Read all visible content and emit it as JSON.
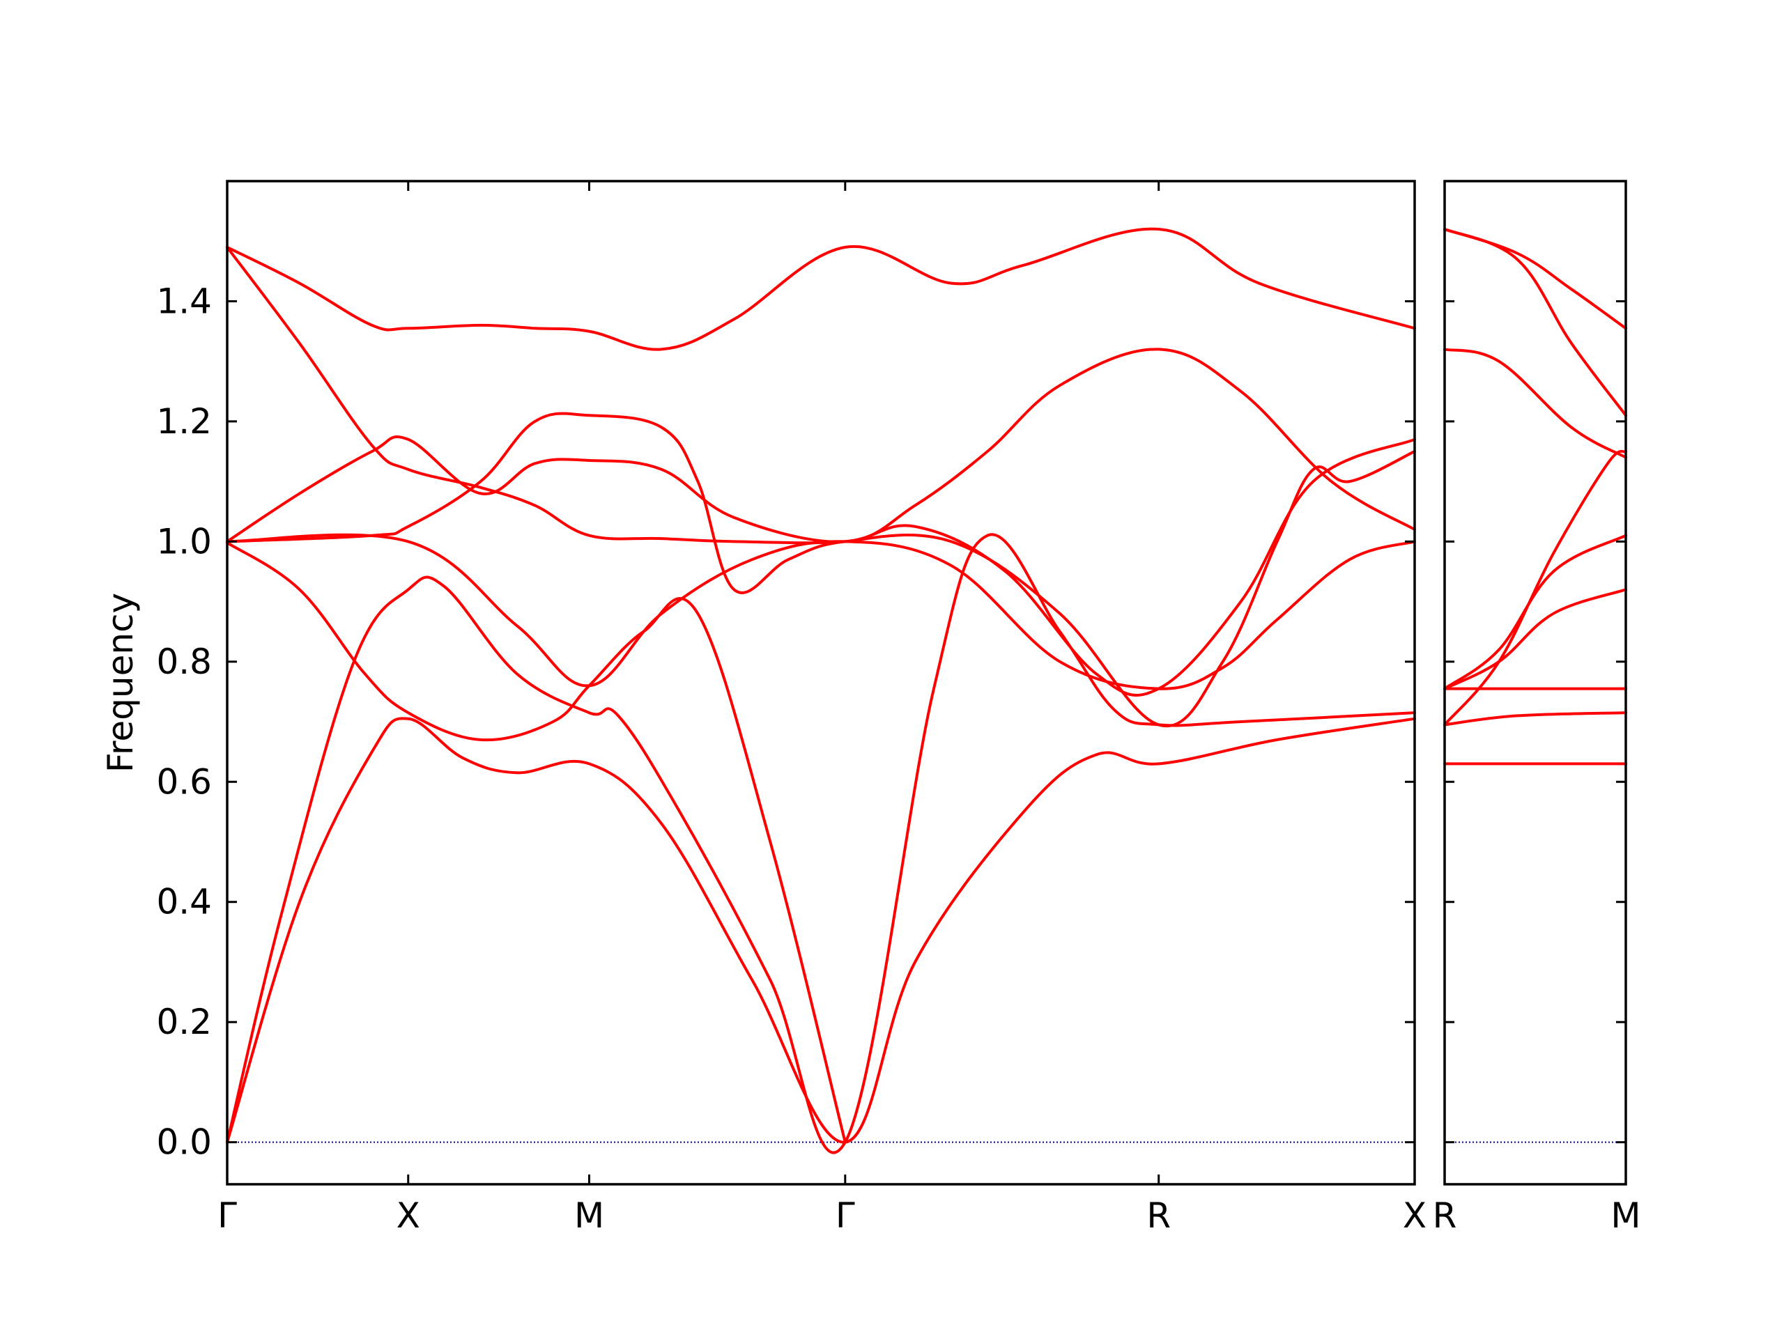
{
  "chart_data": {
    "type": "line",
    "ylabel": "Frequency",
    "ylim": [
      -0.07,
      1.6
    ],
    "yticks": [
      0.0,
      0.2,
      0.4,
      0.6,
      0.8,
      1.0,
      1.2,
      1.4
    ],
    "ytick_labels": [
      "0.0",
      "0.2",
      "0.4",
      "0.6",
      "0.8",
      "1.0",
      "1.2",
      "1.4"
    ],
    "grid": false,
    "legend": "none",
    "colors": {
      "bands": "#ff0000",
      "zero_line": "#00008b",
      "frame": "#000000"
    },
    "panels": [
      {
        "name": "main",
        "kpoints": [
          {
            "label": "Γ",
            "x": 0.0
          },
          {
            "label": "X",
            "x": 0.5
          },
          {
            "label": "M",
            "x": 1.0
          },
          {
            "label": "Γ",
            "x": 1.707
          },
          {
            "label": "R",
            "x": 2.573
          },
          {
            "label": "X",
            "x": 3.28
          }
        ],
        "xlim": [
          0.0,
          3.28
        ],
        "bands": [
          [
            [
              0.0,
              0.0
            ],
            [
              0.2,
              0.4
            ],
            [
              0.4,
              0.65
            ],
            [
              0.5,
              0.705
            ],
            [
              0.65,
              0.64
            ],
            [
              0.8,
              0.615
            ],
            [
              1.0,
              0.63
            ],
            [
              1.2,
              0.53
            ],
            [
              1.45,
              0.27
            ],
            [
              1.707,
              0.0
            ],
            [
              1.9,
              0.3
            ],
            [
              2.2,
              0.55
            ],
            [
              2.4,
              0.645
            ],
            [
              2.573,
              0.63
            ],
            [
              2.9,
              0.67
            ],
            [
              3.28,
              0.705
            ]
          ],
          [
            [
              0.0,
              0.0
            ],
            [
              0.15,
              0.38
            ],
            [
              0.35,
              0.8
            ],
            [
              0.5,
              0.92
            ],
            [
              0.6,
              0.925
            ],
            [
              0.8,
              0.78
            ],
            [
              1.0,
              0.715
            ],
            [
              1.08,
              0.71
            ],
            [
              1.25,
              0.55
            ],
            [
              1.5,
              0.27
            ],
            [
              1.707,
              0.0
            ],
            [
              1.95,
              0.75
            ],
            [
              2.1,
              1.01
            ],
            [
              2.3,
              0.85
            ],
            [
              2.45,
              0.72
            ],
            [
              2.573,
              0.695
            ],
            [
              2.8,
              0.7
            ],
            [
              3.28,
              0.715
            ]
          ],
          [
            [
              0.0,
              0.998
            ],
            [
              0.2,
              0.92
            ],
            [
              0.38,
              0.78
            ],
            [
              0.5,
              0.715
            ],
            [
              0.7,
              0.67
            ],
            [
              0.9,
              0.7
            ],
            [
              1.0,
              0.76
            ],
            [
              1.15,
              0.85
            ],
            [
              1.3,
              0.88
            ],
            [
              1.5,
              0.5
            ],
            [
              1.707,
              0.0
            ]
          ],
          [
            [
              0.0,
              1.0
            ],
            [
              0.5,
              1.0
            ],
            [
              0.8,
              0.86
            ],
            [
              1.0,
              0.76
            ],
            [
              1.2,
              0.88
            ],
            [
              1.45,
              0.97
            ],
            [
              1.707,
              1.0
            ],
            [
              2.0,
              0.96
            ],
            [
              2.3,
              0.8
            ],
            [
              2.573,
              0.755
            ],
            [
              2.75,
              0.79
            ],
            [
              2.9,
              0.87
            ],
            [
              3.1,
              0.97
            ],
            [
              3.28,
              1.0
            ]
          ],
          [
            [
              0.0,
              1.0
            ],
            [
              0.4,
              1.01
            ],
            [
              0.5,
              1.025
            ],
            [
              0.7,
              1.1
            ],
            [
              0.85,
              1.2
            ],
            [
              1.0,
              1.21
            ],
            [
              1.2,
              1.19
            ],
            [
              1.3,
              1.1
            ],
            [
              1.4,
              0.92
            ],
            [
              1.55,
              0.97
            ],
            [
              1.707,
              1.0
            ],
            [
              2.0,
              1.0
            ],
            [
              2.3,
              0.88
            ],
            [
              2.573,
              0.695
            ],
            [
              2.75,
              0.8
            ],
            [
              2.9,
              1.0
            ],
            [
              3.0,
              1.12
            ],
            [
              3.1,
              1.1
            ],
            [
              3.28,
              1.15
            ]
          ],
          [
            [
              0.0,
              1.0
            ],
            [
              0.2,
              1.08
            ],
            [
              0.4,
              1.15
            ],
            [
              0.5,
              1.17
            ],
            [
              0.7,
              1.08
            ],
            [
              0.85,
              1.13
            ],
            [
              1.0,
              1.135
            ],
            [
              1.2,
              1.12
            ],
            [
              1.4,
              1.04
            ],
            [
              1.707,
              1.0
            ],
            [
              1.9,
              1.06
            ],
            [
              2.1,
              1.15
            ],
            [
              2.3,
              1.26
            ],
            [
              2.573,
              1.32
            ],
            [
              2.8,
              1.25
            ],
            [
              3.05,
              1.1
            ],
            [
              3.28,
              1.02
            ]
          ],
          [
            [
              0.0,
              1.49
            ],
            [
              0.2,
              1.33
            ],
            [
              0.4,
              1.16
            ],
            [
              0.5,
              1.12
            ],
            [
              0.7,
              1.09
            ],
            [
              0.85,
              1.06
            ],
            [
              1.0,
              1.01
            ],
            [
              1.2,
              1.005
            ],
            [
              1.4,
              1.0
            ],
            [
              1.707,
              1.0
            ],
            [
              1.9,
              1.025
            ],
            [
              2.15,
              0.95
            ],
            [
              2.4,
              0.78
            ],
            [
              2.573,
              0.755
            ],
            [
              2.8,
              0.9
            ],
            [
              3.0,
              1.1
            ],
            [
              3.28,
              1.17
            ]
          ],
          [
            [
              0.0,
              1.49
            ],
            [
              0.2,
              1.43
            ],
            [
              0.4,
              1.36
            ],
            [
              0.5,
              1.355
            ],
            [
              0.7,
              1.36
            ],
            [
              0.85,
              1.355
            ],
            [
              1.0,
              1.35
            ],
            [
              1.2,
              1.32
            ],
            [
              1.4,
              1.37
            ],
            [
              1.707,
              1.49
            ],
            [
              2.0,
              1.43
            ],
            [
              2.2,
              1.46
            ],
            [
              2.573,
              1.52
            ],
            [
              2.85,
              1.43
            ],
            [
              3.28,
              1.355
            ]
          ]
        ]
      },
      {
        "name": "right",
        "kpoints": [
          {
            "label": "R",
            "x": 0.0
          },
          {
            "label": "M",
            "x": 0.5
          }
        ],
        "xlim": [
          0.0,
          0.5
        ],
        "bands": [
          [
            [
              0.0,
              0.63
            ],
            [
              0.5,
              0.63
            ]
          ],
          [
            [
              0.0,
              0.695
            ],
            [
              0.2,
              0.71
            ],
            [
              0.5,
              0.715
            ]
          ],
          [
            [
              0.0,
              0.695
            ],
            [
              0.15,
              0.8
            ],
            [
              0.3,
              0.98
            ],
            [
              0.45,
              1.13
            ],
            [
              0.5,
              1.15
            ]
          ],
          [
            [
              0.0,
              0.755
            ],
            [
              0.5,
              0.755
            ]
          ],
          [
            [
              0.0,
              0.755
            ],
            [
              0.15,
              0.8
            ],
            [
              0.3,
              0.88
            ],
            [
              0.5,
              0.92
            ]
          ],
          [
            [
              0.0,
              0.755
            ],
            [
              0.15,
              0.82
            ],
            [
              0.3,
              0.95
            ],
            [
              0.5,
              1.01
            ]
          ],
          [
            [
              0.0,
              1.32
            ],
            [
              0.15,
              1.3
            ],
            [
              0.35,
              1.19
            ],
            [
              0.5,
              1.14
            ]
          ],
          [
            [
              0.0,
              1.52
            ],
            [
              0.2,
              1.47
            ],
            [
              0.35,
              1.33
            ],
            [
              0.5,
              1.21
            ]
          ],
          [
            [
              0.0,
              1.52
            ],
            [
              0.2,
              1.48
            ],
            [
              0.35,
              1.42
            ],
            [
              0.5,
              1.355
            ]
          ]
        ]
      }
    ]
  }
}
